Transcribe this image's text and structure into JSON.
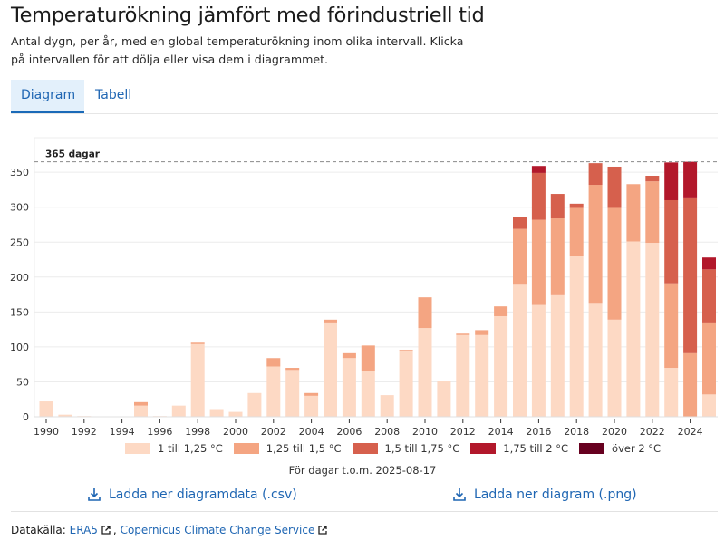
{
  "header": {
    "title": "Temperaturökning jämfört med förindustriell tid",
    "subtitle": "Antal dygn, per år, med en global temperaturökning inom olika intervall. Klicka på intervallen för att dölja eller visa dem i diagrammet."
  },
  "tabs": [
    {
      "label": "Diagram",
      "active": true
    },
    {
      "label": "Tabell",
      "active": false
    }
  ],
  "chart_data": {
    "type": "bar",
    "stacked": true,
    "title": "",
    "xlabel": "",
    "ylabel": "",
    "ylim": [
      0,
      390
    ],
    "yticks": [
      0,
      50,
      100,
      150,
      200,
      250,
      300,
      350
    ],
    "xtick_labels": [
      "1990",
      "1992",
      "1994",
      "1996",
      "1998",
      "2000",
      "2002",
      "2004",
      "2006",
      "2008",
      "2010",
      "2012",
      "2014",
      "2016",
      "2018",
      "2020",
      "2022",
      "2024"
    ],
    "grid": true,
    "reference_line": {
      "value": 365,
      "label": "365 dagar"
    },
    "categories": [
      "1990",
      "1991",
      "1992",
      "1993",
      "1994",
      "1995",
      "1996",
      "1997",
      "1998",
      "1999",
      "2000",
      "2001",
      "2002",
      "2003",
      "2004",
      "2005",
      "2006",
      "2007",
      "2008",
      "2009",
      "2010",
      "2011",
      "2012",
      "2013",
      "2014",
      "2015",
      "2016",
      "2017",
      "2018",
      "2019",
      "2020",
      "2021",
      "2022",
      "2023",
      "2024",
      "2025"
    ],
    "series": [
      {
        "name": "1 till 1,25 °C",
        "color": "#fdd9c4",
        "values": [
          22,
          3,
          1,
          0,
          0,
          16,
          1,
          16,
          104,
          11,
          7,
          34,
          72,
          67,
          30,
          135,
          84,
          65,
          31,
          95,
          127,
          51,
          117,
          117,
          144,
          189,
          160,
          174,
          230,
          163,
          139,
          251,
          249,
          70,
          0,
          32
        ]
      },
      {
        "name": "1,25 till 1,5 °C",
        "color": "#f4a582",
        "values": [
          0,
          0,
          0,
          0,
          0,
          5,
          0,
          0,
          2,
          0,
          0,
          0,
          12,
          3,
          4,
          4,
          7,
          37,
          0,
          1,
          44,
          0,
          2,
          7,
          14,
          80,
          122,
          110,
          69,
          169,
          160,
          82,
          88,
          121,
          91,
          103
        ]
      },
      {
        "name": "1,5 till 1,75 °C",
        "color": "#d6604d",
        "values": [
          0,
          0,
          0,
          0,
          0,
          0,
          0,
          0,
          0,
          0,
          0,
          0,
          0,
          0,
          0,
          0,
          0,
          0,
          0,
          0,
          0,
          0,
          0,
          0,
          0,
          17,
          67,
          35,
          6,
          31,
          59,
          0,
          8,
          119,
          223,
          76
        ]
      },
      {
        "name": "1,75 till 2 °C",
        "color": "#b2182b",
        "values": [
          0,
          0,
          0,
          0,
          0,
          0,
          0,
          0,
          0,
          0,
          0,
          0,
          0,
          0,
          0,
          0,
          0,
          0,
          0,
          0,
          0,
          0,
          0,
          0,
          0,
          0,
          10,
          0,
          0,
          0,
          0,
          0,
          0,
          54,
          51,
          17
        ]
      },
      {
        "name": "över 2 °C",
        "color": "#67001f",
        "values": [
          0,
          0,
          0,
          0,
          0,
          0,
          0,
          0,
          0,
          0,
          0,
          0,
          0,
          0,
          0,
          0,
          0,
          0,
          0,
          0,
          0,
          0,
          0,
          0,
          0,
          0,
          0,
          0,
          0,
          0,
          0,
          0,
          0,
          0,
          0,
          0
        ]
      }
    ],
    "legend": "bottom",
    "note": "För dagar t.o.m. 2025-08-17"
  },
  "downloads": {
    "csv_label": "Ladda ner diagramdata (.csv)",
    "png_label": "Ladda ner diagram (.png)"
  },
  "source": {
    "prefix": "Datakälla:",
    "links": [
      "ERA5",
      "Copernicus Climate Change Service"
    ],
    "separator": ","
  },
  "colors": {
    "link": "#1f66b3",
    "tab_active_bg": "#e3f0fb",
    "tab_active_border": "#1a6ab8"
  }
}
